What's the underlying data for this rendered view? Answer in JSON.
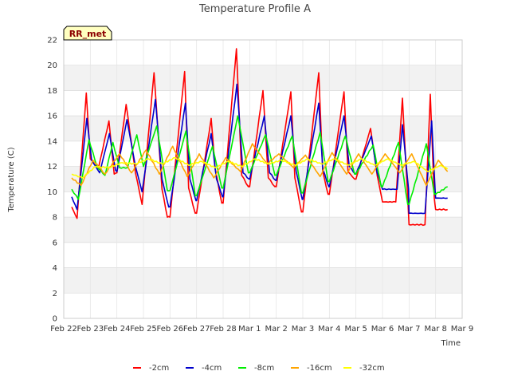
{
  "chart_data": {
    "type": "line",
    "title": "Temperature Profile A",
    "xlabel": "Time",
    "ylabel": "Temperature (C)",
    "badge": "RR_met",
    "ylim": [
      0,
      22
    ],
    "yticks": [
      0,
      2,
      4,
      6,
      8,
      10,
      12,
      14,
      16,
      18,
      20,
      22
    ],
    "xlim": [
      0,
      15
    ],
    "xticks": [
      {
        "x": 0,
        "label": "Feb 22"
      },
      {
        "x": 1,
        "label": "Feb 23"
      },
      {
        "x": 2,
        "label": "Feb 24"
      },
      {
        "x": 3,
        "label": "Feb 25"
      },
      {
        "x": 4,
        "label": "Feb 26"
      },
      {
        "x": 5,
        "label": "Feb 27"
      },
      {
        "x": 6,
        "label": "Feb 28"
      },
      {
        "x": 7,
        "label": "Mar 1"
      },
      {
        "x": 8,
        "label": "Mar 2"
      },
      {
        "x": 9,
        "label": "Mar 3"
      },
      {
        "x": 10,
        "label": "Mar 4"
      },
      {
        "x": 11,
        "label": "Mar 5"
      },
      {
        "x": 12,
        "label": "Mar 6"
      },
      {
        "x": 13,
        "label": "Mar 7"
      },
      {
        "x": 14,
        "label": "Mar 8"
      },
      {
        "x": 15,
        "label": "Mar 9"
      }
    ],
    "legend_position": "bottom",
    "grid": true,
    "series": [
      {
        "name": "-2cm",
        "color": "#ff0000",
        "x": [
          0.3,
          0.5,
          0.85,
          1.0,
          1.3,
          1.7,
          1.9,
          2.0,
          2.35,
          2.7,
          2.95,
          3.4,
          3.7,
          3.9,
          4.0,
          4.55,
          4.7,
          4.95,
          5.0,
          5.55,
          5.7,
          5.95,
          6.0,
          6.5,
          6.7,
          6.95,
          7.0,
          7.5,
          7.7,
          7.95,
          8.0,
          8.55,
          8.7,
          8.95,
          9.0,
          9.6,
          9.75,
          9.95,
          10.0,
          10.55,
          10.7,
          10.95,
          11.0,
          11.55,
          11.8,
          12.0,
          12.5,
          12.75,
          12.95,
          13.0,
          13.6,
          13.8,
          13.95,
          14.0,
          14.45
        ],
        "y": [
          8.8,
          7.9,
          17.8,
          12.6,
          11.8,
          15.6,
          11.4,
          11.5,
          16.9,
          11.5,
          9.0,
          19.4,
          10.2,
          8.0,
          8.0,
          19.5,
          10.3,
          8.3,
          8.3,
          15.8,
          11.8,
          9.1,
          9.1,
          21.3,
          11.3,
          10.4,
          10.4,
          18.0,
          11.1,
          10.4,
          10.4,
          17.9,
          11.1,
          8.4,
          8.4,
          19.4,
          11.6,
          9.8,
          9.8,
          17.9,
          11.6,
          11.0,
          11.0,
          15.0,
          11.3,
          9.2,
          9.2,
          17.4,
          9.5,
          7.4,
          7.4,
          17.7,
          9.5,
          8.6,
          8.6
        ]
      },
      {
        "name": "-4cm",
        "color": "#0000cc",
        "x": [
          0.3,
          0.5,
          0.87,
          1.05,
          1.35,
          1.72,
          1.95,
          2.0,
          2.38,
          2.7,
          2.95,
          3.45,
          3.7,
          3.95,
          4.0,
          4.58,
          4.75,
          4.98,
          5.0,
          5.55,
          5.75,
          5.98,
          6.0,
          6.52,
          6.75,
          6.98,
          7.0,
          7.55,
          7.75,
          7.98,
          8.0,
          8.55,
          8.75,
          8.98,
          9.0,
          9.6,
          9.75,
          9.98,
          10.0,
          10.55,
          10.75,
          10.98,
          11.0,
          11.58,
          11.8,
          12.0,
          12.55,
          12.75,
          12.98,
          13.0,
          13.6,
          13.85,
          13.98,
          14.0,
          14.45
        ],
        "y": [
          9.6,
          8.6,
          15.8,
          12.5,
          11.5,
          14.6,
          11.7,
          11.6,
          15.7,
          12.0,
          10.0,
          17.3,
          11.0,
          8.8,
          8.8,
          17.0,
          11.0,
          9.3,
          9.3,
          14.6,
          11.0,
          9.6,
          9.6,
          18.5,
          11.5,
          11.0,
          11.0,
          16.0,
          11.5,
          10.9,
          10.9,
          16.0,
          11.6,
          9.4,
          9.4,
          17.0,
          11.8,
          10.4,
          10.4,
          16.0,
          12.0,
          11.4,
          11.4,
          14.4,
          11.5,
          10.2,
          10.2,
          15.3,
          10.2,
          8.3,
          8.3,
          15.6,
          10.2,
          9.5,
          9.5
        ]
      },
      {
        "name": "-8cm",
        "color": "#00ee00",
        "x": [
          0.3,
          0.55,
          0.95,
          1.25,
          1.55,
          1.85,
          2.1,
          2.4,
          2.75,
          3.0,
          3.5,
          3.9,
          4.0,
          4.6,
          4.95,
          5.0,
          5.6,
          5.95,
          6.0,
          6.55,
          6.95,
          7.0,
          7.6,
          7.95,
          8.0,
          8.6,
          8.95,
          9.0,
          9.65,
          9.95,
          10.0,
          10.6,
          10.95,
          11.0,
          11.65,
          11.95,
          12.0,
          12.6,
          12.95,
          13.0,
          13.65,
          13.95,
          14.0,
          14.45
        ],
        "y": [
          10.2,
          9.4,
          14.1,
          12.0,
          11.3,
          13.9,
          11.9,
          11.9,
          14.5,
          12.0,
          15.2,
          10.1,
          10.1,
          14.8,
          9.7,
          9.7,
          13.6,
          10.3,
          10.3,
          16.0,
          11.5,
          11.5,
          14.5,
          11.3,
          11.3,
          14.4,
          9.9,
          9.9,
          14.7,
          10.8,
          10.8,
          14.4,
          11.4,
          11.4,
          13.7,
          10.4,
          10.4,
          13.9,
          9.0,
          9.0,
          13.8,
          9.8,
          9.8,
          10.4
        ]
      },
      {
        "name": "-16cm",
        "color": "#ffa500",
        "x": [
          0.3,
          0.65,
          1.1,
          1.55,
          2.1,
          2.55,
          3.1,
          3.6,
          4.1,
          4.65,
          5.1,
          5.65,
          6.1,
          6.65,
          7.1,
          7.65,
          8.1,
          8.65,
          9.1,
          9.65,
          10.1,
          10.65,
          11.1,
          11.6,
          12.1,
          12.65,
          13.1,
          13.65,
          14.1,
          14.45
        ],
        "y": [
          11.1,
          10.5,
          12.5,
          11.4,
          13.0,
          11.5,
          13.3,
          11.4,
          13.6,
          11.2,
          13.0,
          11.1,
          12.7,
          11.6,
          13.8,
          12.2,
          13.0,
          11.9,
          12.9,
          11.2,
          13.1,
          11.4,
          13.0,
          11.4,
          13.0,
          11.5,
          13.0,
          10.5,
          12.5,
          11.6
        ]
      },
      {
        "name": "-32cm",
        "color": "#ffff00",
        "x": [
          0.3,
          0.7,
          1.2,
          1.7,
          2.2,
          2.7,
          3.2,
          3.7,
          4.2,
          4.7,
          5.2,
          5.7,
          6.2,
          6.7,
          7.2,
          7.7,
          8.2,
          8.7,
          9.2,
          9.7,
          10.2,
          10.7,
          11.2,
          11.7,
          12.2,
          12.7,
          13.2,
          13.7,
          14.2,
          14.45
        ],
        "y": [
          11.4,
          11.1,
          12.0,
          11.9,
          12.3,
          12.2,
          12.6,
          12.2,
          12.7,
          12.1,
          12.4,
          11.9,
          12.4,
          12.0,
          12.6,
          12.2,
          12.5,
          12.1,
          12.6,
          12.2,
          12.6,
          12.1,
          12.6,
          12.1,
          12.6,
          12.1,
          12.4,
          11.6,
          12.1,
          11.8
        ]
      }
    ]
  }
}
